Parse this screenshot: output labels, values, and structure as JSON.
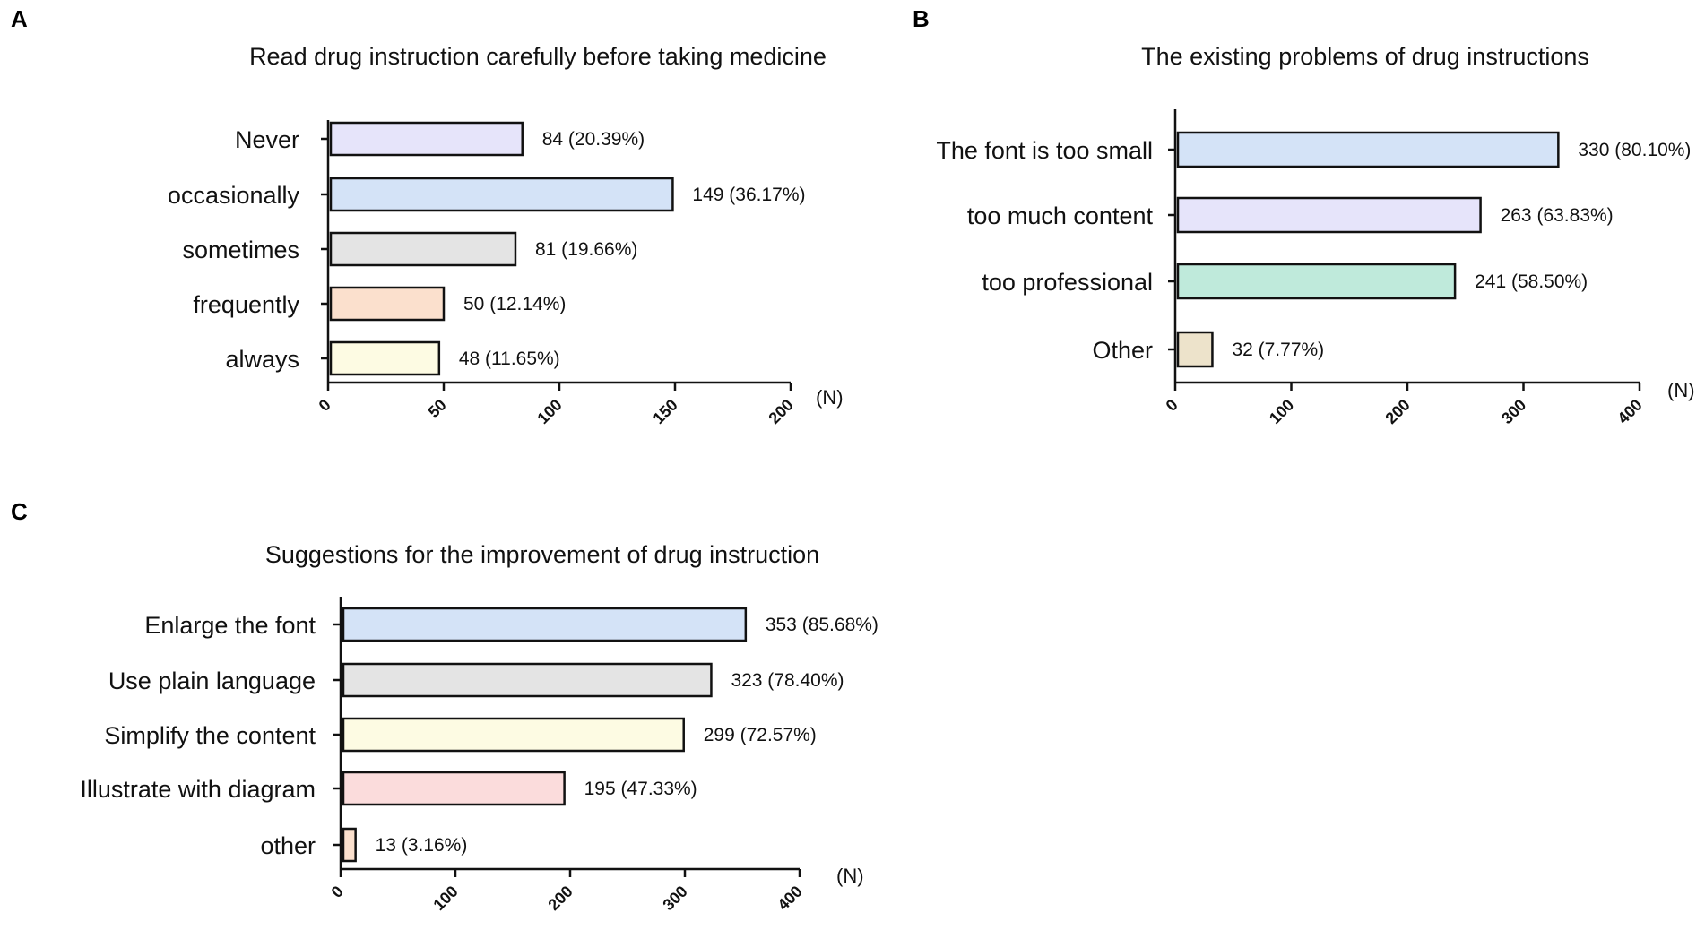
{
  "chart_data": [
    {
      "panel": "A",
      "type": "bar",
      "orientation": "horizontal",
      "title": "Read drug instruction carefully before taking medicine",
      "categories": [
        "Never",
        "occasionally",
        "sometimes",
        "frequently",
        "always"
      ],
      "values": [
        84,
        149,
        81,
        50,
        48
      ],
      "value_labels": [
        "84 (20.39%)",
        "149 (36.17%)",
        "81 (19.66%)",
        "50 (12.14%)",
        "48 (11.65%)"
      ],
      "colors": [
        "#e6e4fa",
        "#d4e3f7",
        "#e4e4e4",
        "#fbe0cd",
        "#fdfbe3"
      ],
      "xlim": [
        0,
        200
      ],
      "xticks": [
        "0",
        "50",
        "100",
        "150",
        "200"
      ],
      "xunit": "(N)"
    },
    {
      "panel": "B",
      "type": "bar",
      "orientation": "horizontal",
      "title": "The existing problems of drug instructions",
      "categories": [
        "The font is too small",
        "too much content",
        "too professional",
        "Other"
      ],
      "values": [
        330,
        263,
        241,
        32
      ],
      "value_labels": [
        "330 (80.10%)",
        "263 (63.83%)",
        "241 (58.50%)",
        "32 (7.77%)"
      ],
      "colors": [
        "#d4e3f7",
        "#e6e4fa",
        "#bfeadb",
        "#ede3cb"
      ],
      "xlim": [
        0,
        400
      ],
      "xticks": [
        "0",
        "100",
        "200",
        "300",
        "400"
      ],
      "xunit": "(N)"
    },
    {
      "panel": "C",
      "type": "bar",
      "orientation": "horizontal",
      "title": "Suggestions for the improvement of drug instruction",
      "categories": [
        "Enlarge the font",
        "Use plain language",
        "Simplify the content",
        "Illustrate with  diagram",
        "other"
      ],
      "values": [
        353,
        323,
        299,
        195,
        13
      ],
      "value_labels": [
        "353 (85.68%)",
        "323 (78.40%)",
        "299 (72.57%)",
        "195 (47.33%)",
        "13 (3.16%)"
      ],
      "colors": [
        "#d4e3f7",
        "#e4e4e4",
        "#fdfbe3",
        "#fbdcdc",
        "#fbe0cd"
      ],
      "xlim": [
        0,
        400
      ],
      "xticks": [
        "0",
        "100",
        "200",
        "300",
        "400"
      ],
      "xunit": "(N)"
    }
  ]
}
